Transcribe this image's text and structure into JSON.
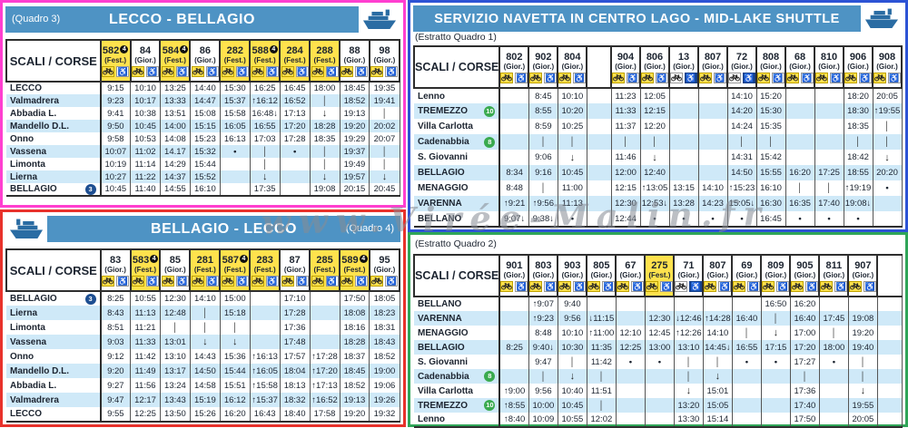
{
  "watermark": "www.Virée-Malin.fr",
  "colors": {
    "header_bar": "#4e93c4",
    "fest_yellow": "#ffe24d",
    "row_stripe": "#cfe9f8",
    "badge_blue": "#1d4e91",
    "badge_green": "#3aaa4f",
    "badge_black": "#111111",
    "wheelchair_blue": "#16418c",
    "border_quadro3": "#ff3fd0",
    "border_quadro4": "#e8322b",
    "border_estratto1": "#2d53d5",
    "border_estratto2": "#2fa558"
  },
  "panels": [
    {
      "corner_label": "(Quadro 3)",
      "title": "LECCO - BELLAGIO",
      "scali_label": "SCALI / CORSE",
      "columns": [
        {
          "num": "582",
          "note": "4",
          "label": "(Fest.)",
          "fest": true
        },
        {
          "num": "84",
          "label": "(Gior.)",
          "fest": false
        },
        {
          "num": "584",
          "note": "4",
          "label": "(Fest.)",
          "fest": true
        },
        {
          "num": "86",
          "label": "(Gior.)",
          "fest": false
        },
        {
          "num": "282",
          "label": "(Fest.)",
          "fest": true
        },
        {
          "num": "588",
          "note": "4",
          "label": "(Fest.)",
          "fest": true
        },
        {
          "num": "284",
          "label": "(Fest.)",
          "fest": true
        },
        {
          "num": "288",
          "label": "(Fest.)",
          "fest": true
        },
        {
          "num": "88",
          "label": "(Gior.)",
          "fest": false
        },
        {
          "num": "98",
          "label": "(Gior.)",
          "fest": false
        }
      ],
      "rows": [
        {
          "station": "LECCO",
          "cells": [
            "9:15",
            "10:10",
            "13:25",
            "14:40",
            "15:30",
            "16:25",
            "16:45",
            "18:00",
            "18:45",
            "19:35"
          ]
        },
        {
          "station": "Valmadrera",
          "cells": [
            "9:23",
            "10:17",
            "13:33",
            "14:47",
            "15:37",
            "↑16:12",
            "16:52",
            "│",
            "18:52",
            "19:41"
          ]
        },
        {
          "station": "Abbadia L.",
          "cells": [
            "9:41",
            "10:38",
            "13:51",
            "15:08",
            "15:58",
            "16:48↓",
            "17:13",
            "↓",
            "19:13",
            "│"
          ]
        },
        {
          "station": "Mandello D.L.",
          "cells": [
            "9:50",
            "10:45",
            "14:00",
            "15:15",
            "16:05",
            "16:55",
            "17:20",
            "18:28",
            "19:20",
            "20:02"
          ]
        },
        {
          "station": "Onno",
          "cells": [
            "9:58",
            "10:53",
            "14:08",
            "15:23",
            "16:13",
            "17:03",
            "17:28",
            "18:35",
            "19:29",
            "20:07"
          ]
        },
        {
          "station": "Vassena",
          "cells": [
            "10:07",
            "11:02",
            "14.17",
            "15:32",
            "•",
            "│",
            "•",
            "│",
            "19:37",
            "│"
          ]
        },
        {
          "station": "Limonta",
          "cells": [
            "10:19",
            "11:14",
            "14:29",
            "15:44",
            "",
            "│",
            "",
            "│",
            "19:49",
            "│"
          ]
        },
        {
          "station": "Lierna",
          "cells": [
            "10:27",
            "11:22",
            "14:37",
            "15:52",
            "",
            "↓",
            "",
            "↓",
            "19:57",
            "↓"
          ]
        },
        {
          "station": "BELLAGIO",
          "badge": {
            "text": "3",
            "color": "#1d4e91"
          },
          "cells": [
            "10:45",
            "11:40",
            "14:55",
            "16:10",
            "",
            "17:35",
            "",
            "19:08",
            "20:15",
            "20:45"
          ]
        }
      ]
    },
    {
      "corner_label": "(Quadro 4)",
      "title": "BELLAGIO - LECCO",
      "scali_label": "SCALI / CORSE",
      "columns": [
        {
          "num": "83",
          "label": "(Gior.)",
          "fest": false
        },
        {
          "num": "583",
          "note": "4",
          "label": "(Fest.)",
          "fest": true
        },
        {
          "num": "85",
          "label": "(Gior.)",
          "fest": false
        },
        {
          "num": "281",
          "label": "(Fest.)",
          "fest": true
        },
        {
          "num": "587",
          "note": "4",
          "label": "(Fest.)",
          "fest": true
        },
        {
          "num": "283",
          "label": "(Fest.)",
          "fest": true
        },
        {
          "num": "87",
          "label": "(Gior.)",
          "fest": false
        },
        {
          "num": "285",
          "label": "(Fest.)",
          "fest": true
        },
        {
          "num": "589",
          "note": "4",
          "label": "(Fest.)",
          "fest": true
        },
        {
          "num": "95",
          "label": "(Gior.)",
          "fest": false
        }
      ],
      "rows": [
        {
          "station": "BELLAGIO",
          "badge": {
            "text": "3",
            "color": "#1d4e91"
          },
          "cells": [
            "8:25",
            "10:55",
            "12:30",
            "14:10",
            "15:00",
            "",
            "17:10",
            "",
            "17:50",
            "18:05"
          ]
        },
        {
          "station": "Lierna",
          "cells": [
            "8:43",
            "11:13",
            "12:48",
            "│",
            "15:18",
            "",
            "17:28",
            "",
            "18:08",
            "18:23"
          ]
        },
        {
          "station": "Limonta",
          "cells": [
            "8:51",
            "11:21",
            "│",
            "│",
            "│",
            "",
            "17:36",
            "",
            "18:16",
            "18:31"
          ]
        },
        {
          "station": "Vassena",
          "cells": [
            "9:03",
            "11:33",
            "13:01",
            "↓",
            "↓",
            "",
            "17:48",
            "",
            "18:28",
            "18:43"
          ]
        },
        {
          "station": "Onno",
          "cells": [
            "9:12",
            "11:42",
            "13:10",
            "14:43",
            "15:36",
            "↑16:13",
            "17:57",
            "↑17:28",
            "18:37",
            "18:52"
          ]
        },
        {
          "station": "Mandello D.L.",
          "cells": [
            "9:20",
            "11:49",
            "13:17",
            "14:50",
            "15:44",
            "↑16:05",
            "18:04",
            "↑17:20",
            "18:45",
            "19:00"
          ]
        },
        {
          "station": "Abbadia L.",
          "cells": [
            "9:27",
            "11:56",
            "13:24",
            "14:58",
            "15:51",
            "↑15:58",
            "18:13",
            "↑17:13",
            "18:52",
            "19:06"
          ]
        },
        {
          "station": "Valmadrera",
          "cells": [
            "9:47",
            "12:17",
            "13:43",
            "15:19",
            "16:12",
            "↑15:37",
            "18:32",
            "↑16:52",
            "19:13",
            "19:26"
          ]
        },
        {
          "station": "LECCO",
          "cells": [
            "9:55",
            "12:25",
            "13:50",
            "15:26",
            "16:20",
            "16:43",
            "18:40",
            "17:58",
            "19:20",
            "19:32"
          ]
        }
      ]
    },
    {
      "title": "SERVIZIO NAVETTA IN CENTRO LAGO  -  MID-LAKE SHUTTLE",
      "sub_label": "(Estratto Quadro 1)",
      "scali_label": "SCALI / CORSE",
      "columns": [
        {
          "num": "802",
          "label": "(Gior.)",
          "fest": false
        },
        {
          "num": "902",
          "label": "(Gior.)",
          "fest": false
        },
        {
          "num": "804",
          "label": "(Gior.)",
          "fest": false
        },
        {},
        {
          "num": "904",
          "label": "(Gior.)",
          "fest": false
        },
        {
          "num": "806",
          "label": "(Gior.)",
          "fest": false
        },
        {
          "num": "13",
          "label": "(Gior.)",
          "fest": false,
          "wc_blue": true
        },
        {
          "num": "807",
          "label": "(Gior.)",
          "fest": false
        },
        {
          "num": "72",
          "label": "(Gior.)",
          "fest": false,
          "wc_blue": true
        },
        {
          "num": "808",
          "label": "(Gior.)",
          "fest": false
        },
        {
          "num": "68",
          "label": "(Gior.)",
          "fest": false
        },
        {
          "num": "810",
          "label": "(Gior.)",
          "fest": false
        },
        {
          "num": "906",
          "label": "(Gior.)",
          "fest": false
        },
        {
          "num": "908",
          "label": "(Gior.)",
          "fest": false
        }
      ],
      "rows": [
        {
          "station": "Lenno",
          "cells": [
            "",
            "8:45",
            "10:10",
            "",
            "11:23",
            "12:05",
            "",
            "",
            "14:10",
            "15:20",
            "",
            "",
            "18:20",
            "20:05"
          ]
        },
        {
          "station": "TREMEZZO",
          "badge": {
            "text": "10",
            "color": "#3aaa4f"
          },
          "cells": [
            "",
            "8:55",
            "10:20",
            "",
            "11:33",
            "12:15",
            "",
            "",
            "14:20",
            "15:30",
            "",
            "",
            "18:30",
            "↑19:55"
          ]
        },
        {
          "station": "Villa Carlotta",
          "cells": [
            "",
            "8:59",
            "10:25",
            "",
            "11:37",
            "12:20",
            "",
            "",
            "14:24",
            "15:35",
            "",
            "",
            "18:35",
            "│"
          ]
        },
        {
          "station": "Cadenabbia",
          "badge": {
            "text": "8",
            "color": "#3aaa4f"
          },
          "cells": [
            "",
            "│",
            "│",
            "",
            "│",
            "│",
            "",
            "",
            "│",
            "│",
            "",
            "",
            "│",
            "│"
          ]
        },
        {
          "station": "S. Giovanni",
          "cells": [
            "",
            "9:06",
            "↓",
            "",
            "11:46",
            "↓",
            "",
            "",
            "14:31",
            "15:42",
            "",
            "",
            "18:42",
            "↓"
          ]
        },
        {
          "station": "BELLAGIO",
          "cells": [
            "8:34",
            "9:16",
            "10:45",
            "",
            "12:00",
            "12:40",
            "",
            "",
            "14:50",
            "15:55",
            "16:20",
            "17:25",
            "18:55",
            "20:20"
          ]
        },
        {
          "station": "MENAGGIO",
          "cells": [
            "8:48",
            "│",
            "11:00",
            "",
            "12:15",
            "↑13:05",
            "13:15",
            "14:10",
            "↑15:23",
            "16:10",
            "│",
            "│",
            "↑19:19",
            "•"
          ]
        },
        {
          "station": "VARENNA",
          "cells": [
            "↑9:21",
            "↑9:56",
            "11:13",
            "",
            "12:30",
            "12:53↓",
            "13:28",
            "14:23",
            "15:05↓",
            "16:30",
            "16:35",
            "17:40",
            "19:08↓",
            ""
          ]
        },
        {
          "station": "BELLANO",
          "cells": [
            "9:07↓",
            "9:38↓",
            "•",
            "",
            "12:44",
            "•",
            "•",
            "•",
            "•",
            "16:45",
            "•",
            "•",
            "•",
            ""
          ]
        }
      ]
    },
    {
      "sub_label": "(Estratto Quadro 2)",
      "scali_label": "SCALI / CORSE",
      "columns": [
        {
          "num": "901",
          "label": "(Gior.)",
          "fest": false
        },
        {
          "num": "803",
          "label": "(Gior.)",
          "fest": false
        },
        {
          "num": "903",
          "label": "(Gior.)",
          "fest": false
        },
        {
          "num": "805",
          "label": "(Gior.)",
          "fest": false
        },
        {
          "num": "67",
          "label": "(Gior.)",
          "fest": false
        },
        {
          "num": "275",
          "label": "(Fest.)",
          "fest": true
        },
        {
          "num": "71",
          "label": "(Gior.)",
          "fest": false,
          "wc_blue": true
        },
        {
          "num": "807",
          "label": "(Gior.)",
          "fest": false
        },
        {
          "num": "69",
          "label": "(Gior.)",
          "fest": false
        },
        {
          "num": "809",
          "label": "(Gior.)",
          "fest": false
        },
        {
          "num": "905",
          "label": "(Gior.)",
          "fest": false
        },
        {
          "num": "811",
          "label": "(Gior.)",
          "fest": false
        },
        {
          "num": "907",
          "label": "(Gior.)",
          "fest": false
        },
        {}
      ],
      "rows": [
        {
          "station": "BELLANO",
          "cells": [
            "",
            "↑9:07",
            "9:40",
            "",
            "",
            "",
            "",
            "",
            "",
            "16:50",
            "16:20",
            "",
            "",
            ""
          ]
        },
        {
          "station": "VARENNA",
          "cells": [
            "",
            "↑9:23",
            "9:56",
            "↓11:15",
            "",
            "12:30",
            "↓12:46",
            "↑14:28",
            "16:40",
            "│",
            "16:40",
            "17:45",
            "19:08",
            ""
          ]
        },
        {
          "station": "MENAGGIO",
          "cells": [
            "",
            "8:48",
            "10:10",
            "↑11:00",
            "12:10",
            "12:45",
            "↑12:26",
            "14:10",
            "│",
            "↓",
            "17:00",
            "│",
            "19:20",
            ""
          ]
        },
        {
          "station": "BELLAGIO",
          "cells": [
            "8:25",
            "9:40↓",
            "10:30",
            "11:35",
            "12:25",
            "13:00",
            "13:10",
            "14:45↓",
            "16:55",
            "17:15",
            "17:20",
            "18:00",
            "19:40",
            ""
          ]
        },
        {
          "station": "S. Giovanni",
          "cells": [
            "",
            "9:47",
            "│",
            "11:42",
            "•",
            "•",
            "│",
            "│",
            "•",
            "•",
            "17:27",
            "•",
            "│",
            ""
          ]
        },
        {
          "station": "Cadenabbia",
          "badge": {
            "text": "8",
            "color": "#3aaa4f"
          },
          "cells": [
            "",
            "│",
            "↓",
            "│",
            "",
            "",
            "│",
            "↓",
            "",
            "",
            "│",
            "",
            "│",
            ""
          ]
        },
        {
          "station": "Villa Carlotta",
          "cells": [
            "↑9:00",
            "9:56",
            "10:40",
            "11:51",
            "",
            "",
            "↓",
            "15:01",
            "",
            "",
            "17:36",
            "",
            "↓",
            ""
          ]
        },
        {
          "station": "TREMEZZO",
          "badge": {
            "text": "10",
            "color": "#3aaa4f"
          },
          "cells": [
            "↑8:55",
            "10:00",
            "10:45",
            "│",
            "",
            "",
            "13:20",
            "15:05",
            "",
            "",
            "17:40",
            "",
            "19:55",
            ""
          ]
        },
        {
          "station": "Lenno",
          "cells": [
            "↑8:40",
            "10:09",
            "10:55",
            "12:02",
            "",
            "",
            "13:30",
            "15:14",
            "",
            "",
            "17:50",
            "",
            "20:05",
            ""
          ]
        }
      ]
    }
  ]
}
